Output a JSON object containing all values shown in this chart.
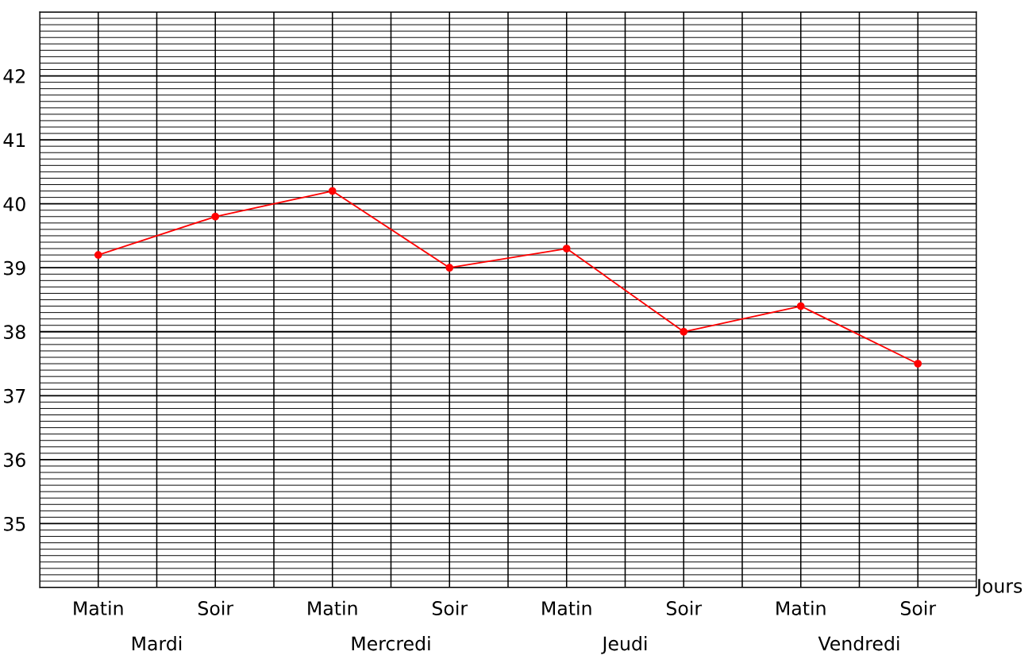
{
  "chart_data": {
    "type": "line",
    "xlabel": "Jours",
    "categories": [
      "Matin",
      "Soir",
      "Matin",
      "Soir",
      "Matin",
      "Soir",
      "Matin",
      "Soir"
    ],
    "series": [
      {
        "color": "#ff0000",
        "values": [
          39.2,
          39.8,
          40.2,
          39.0,
          39.3,
          38.0,
          38.4,
          37.5
        ]
      }
    ],
    "marker": "circle",
    "line_style": "solid",
    "ylim": [
      34,
      43
    ],
    "yticks": [
      35,
      36,
      37,
      38,
      39,
      40,
      41,
      42
    ],
    "grid": true,
    "annotations": [
      "Mardi",
      "Mercredi",
      "Jeudi",
      "Vendredi"
    ]
  }
}
